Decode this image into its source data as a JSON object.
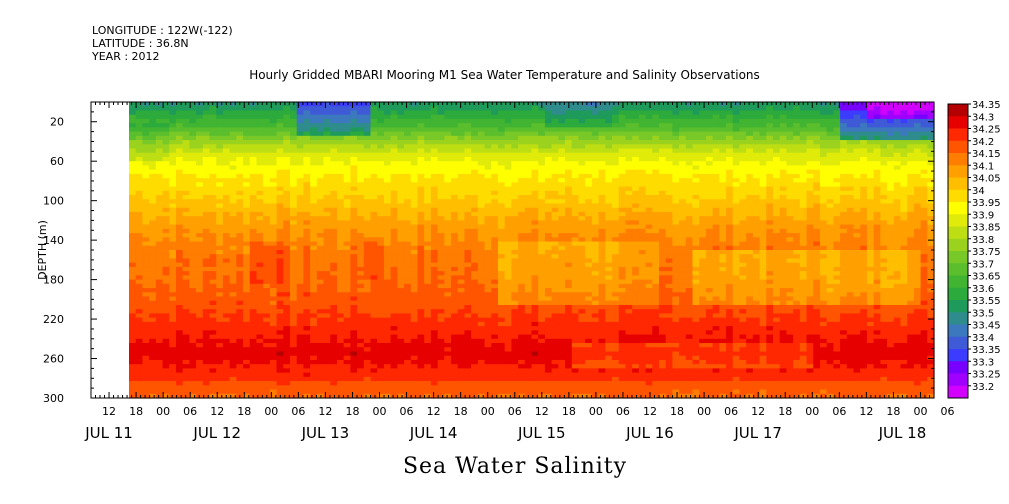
{
  "header": {
    "longitude": "LONGITUDE : 122W(-122)",
    "latitude": "LATITUDE : 36.8N",
    "year": "YEAR : 2012"
  },
  "chart_data": {
    "type": "heatmap",
    "title": "Hourly Gridded MBARI Mooring M1 Sea Water Temperature and Salinity Observations",
    "xlabel": "Sea Water Salinity",
    "ylabel": "DEPTH (m)",
    "y_range": [
      0,
      300
    ],
    "y_ticks": [
      20,
      60,
      100,
      140,
      180,
      220,
      260,
      300
    ],
    "x_hour_ticks": [
      "12",
      "18",
      "00",
      "06",
      "12",
      "18",
      "00",
      "06",
      "12",
      "18",
      "00",
      "06",
      "12",
      "18",
      "00",
      "06",
      "12",
      "18",
      "00",
      "06",
      "12",
      "18",
      "00",
      "06",
      "12",
      "18",
      "00",
      "06",
      "12",
      "18",
      "00",
      "06"
    ],
    "x_day_labels": [
      "JUL 11",
      "JUL 12",
      "JUL 13",
      "JUL 14",
      "JUL 15",
      "JUL 16",
      "JUL 17",
      "JUL 18"
    ],
    "data_start": "2012-07-11 16:00",
    "colorbar_levels": [
      33.2,
      33.25,
      33.3,
      33.35,
      33.4,
      33.45,
      33.5,
      33.55,
      33.6,
      33.65,
      33.7,
      33.75,
      33.8,
      33.85,
      33.9,
      33.95,
      34,
      34.05,
      34.1,
      34.15,
      34.2,
      34.25,
      34.3,
      34.35
    ],
    "colorbar_labels": [
      "34.35",
      "34.3",
      "34.25",
      "34.2",
      "34.15",
      "34.1",
      "34.05",
      "34",
      "33.95",
      "33.9",
      "33.85",
      "33.8",
      "33.75",
      "33.7",
      "33.65",
      "33.6",
      "33.55",
      "33.5",
      "33.45",
      "33.4",
      "33.35",
      "33.3",
      "33.25",
      "33.2"
    ],
    "colors": [
      "#d200ff",
      "#a000ff",
      "#7800ff",
      "#3c3cff",
      "#3e5ad7",
      "#3c78be",
      "#2e8c8c",
      "#1e9b5a",
      "#2daa3c",
      "#41b432",
      "#5abe2d",
      "#78c828",
      "#9bd21e",
      "#bede14",
      "#e1eb0a",
      "#ffff00",
      "#ffdc00",
      "#ffbe00",
      "#ffa000",
      "#ff7d00",
      "#ff5500",
      "#ff2800",
      "#e60000",
      "#b40000"
    ],
    "depth_profile": [
      {
        "depth": 0,
        "value": 33.55
      },
      {
        "depth": 12,
        "value": 33.62
      },
      {
        "depth": 28,
        "value": 33.72
      },
      {
        "depth": 40,
        "value": 33.83
      },
      {
        "depth": 55,
        "value": 33.93
      },
      {
        "depth": 75,
        "value": 34.0
      },
      {
        "depth": 100,
        "value": 34.06
      },
      {
        "depth": 125,
        "value": 34.13
      },
      {
        "depth": 150,
        "value": 34.18
      },
      {
        "depth": 180,
        "value": 34.2
      },
      {
        "depth": 210,
        "value": 34.24
      },
      {
        "depth": 240,
        "value": 34.3
      },
      {
        "depth": 255,
        "value": 34.33
      },
      {
        "depth": 275,
        "value": 34.28
      },
      {
        "depth": 300,
        "value": 34.22
      }
    ],
    "features": [
      {
        "x0": 0.21,
        "x1": 0.3,
        "y0": 0,
        "y1": 35,
        "dv": -0.17
      },
      {
        "x0": 0.52,
        "x1": 0.6,
        "y0": 0,
        "y1": 25,
        "dv": -0.06
      },
      {
        "x0": 0.88,
        "x1": 1.0,
        "y0": 0,
        "y1": 40,
        "dv": -0.25
      },
      {
        "x0": 0.92,
        "x1": 1.0,
        "y0": 0,
        "y1": 18,
        "dv": -0.1
      },
      {
        "x0": 0.0,
        "x1": 0.05,
        "y0": 20,
        "y1": 60,
        "dv": -0.04
      },
      {
        "x0": 0.46,
        "x1": 0.66,
        "y0": 140,
        "y1": 205,
        "dv": -0.07
      },
      {
        "x0": 0.7,
        "x1": 0.98,
        "y0": 150,
        "y1": 205,
        "dv": -0.08
      },
      {
        "x0": 0.15,
        "x1": 0.19,
        "y0": 140,
        "y1": 185,
        "dv": 0.05
      },
      {
        "x0": 0.29,
        "x1": 0.32,
        "y0": 140,
        "y1": 180,
        "dv": 0.05
      },
      {
        "x0": 0.55,
        "x1": 0.85,
        "y0": 245,
        "y1": 270,
        "dv": -0.06
      },
      {
        "x0": 0.0,
        "x1": 1.0,
        "y0": 285,
        "y1": 300,
        "dv": -0.02
      }
    ]
  }
}
